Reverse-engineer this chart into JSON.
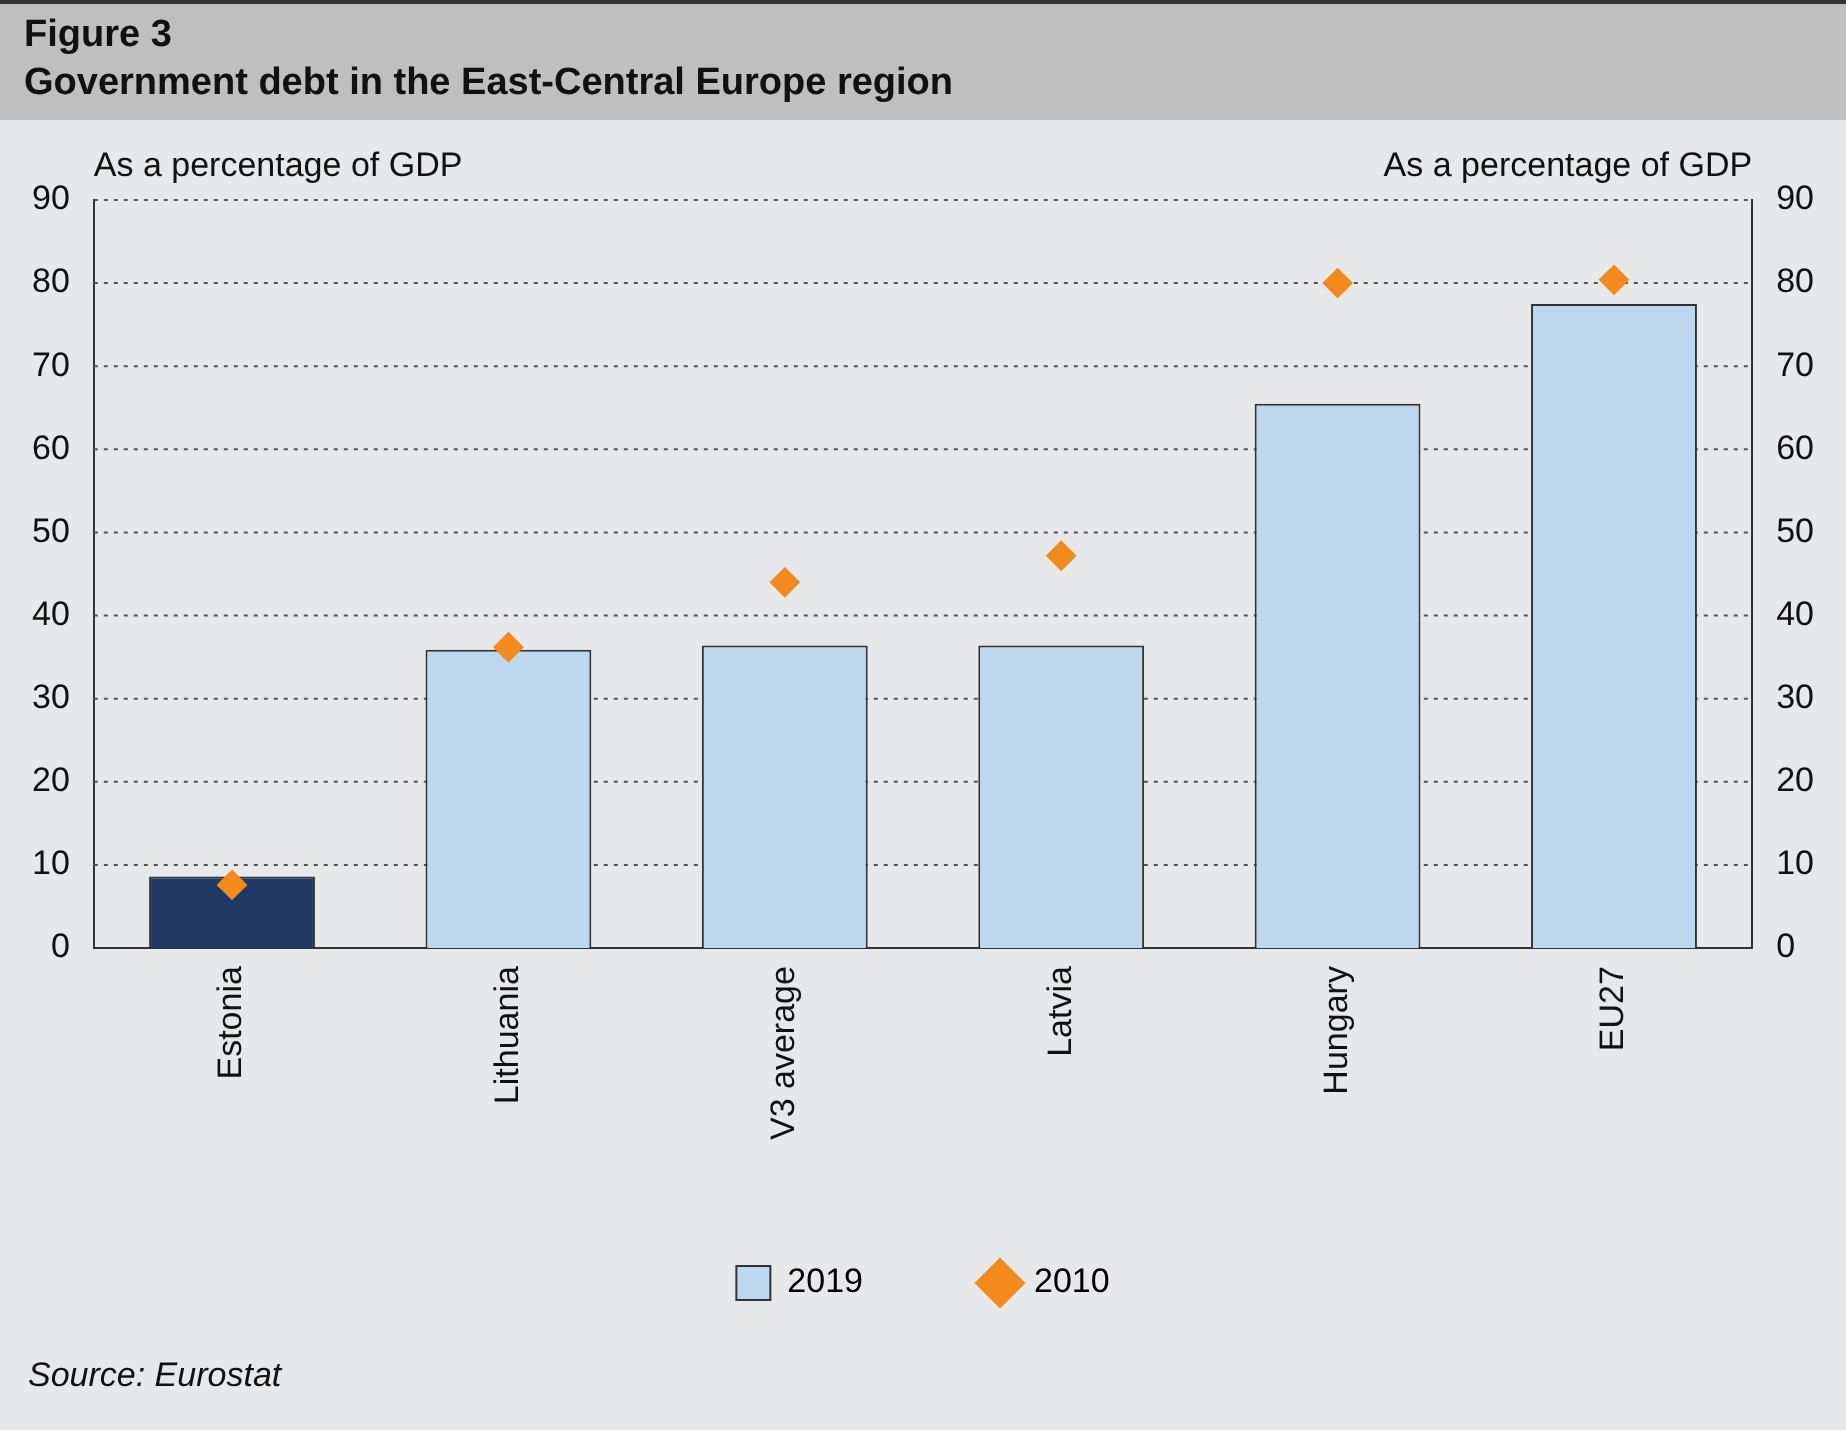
{
  "chart_data": {
    "type": "bar",
    "title": "Figure 3",
    "subtitle": "Government debt in the East-Central Europe region",
    "ylabel": "As a percentage of GDP",
    "y2label": "As a percentage of GDP",
    "categories": [
      "Estonia",
      "Lithuania",
      "V3 average",
      "Latvia",
      "Hungary",
      "EU27"
    ],
    "series": [
      {
        "name": "2019",
        "color": "#bdd7ee",
        "colors": [
          "#1f3864",
          "#bdd7ee",
          "#bdd7ee",
          "#bdd7ee",
          "#bdd7ee",
          "#bdd7ee"
        ],
        "values": [
          8.6,
          35.9,
          36.4,
          36.4,
          65.5,
          77.5
        ]
      },
      {
        "name": "2010",
        "type": "scatter",
        "marker": "diamond",
        "color": "#f28a1e",
        "values": [
          7.6,
          36.2,
          44.0,
          47.2,
          80.0,
          80.4
        ]
      }
    ],
    "ylim": [
      0,
      90
    ],
    "yticks": [
      0,
      10,
      20,
      30,
      40,
      50,
      60,
      70,
      80,
      90
    ],
    "y2lim": [
      0,
      90
    ],
    "y2ticks": [
      0,
      10,
      20,
      30,
      40,
      50,
      60,
      70,
      80,
      90
    ],
    "grid": "y",
    "legend": "bottom",
    "annotations": [
      "Source: Eurostat"
    ]
  }
}
